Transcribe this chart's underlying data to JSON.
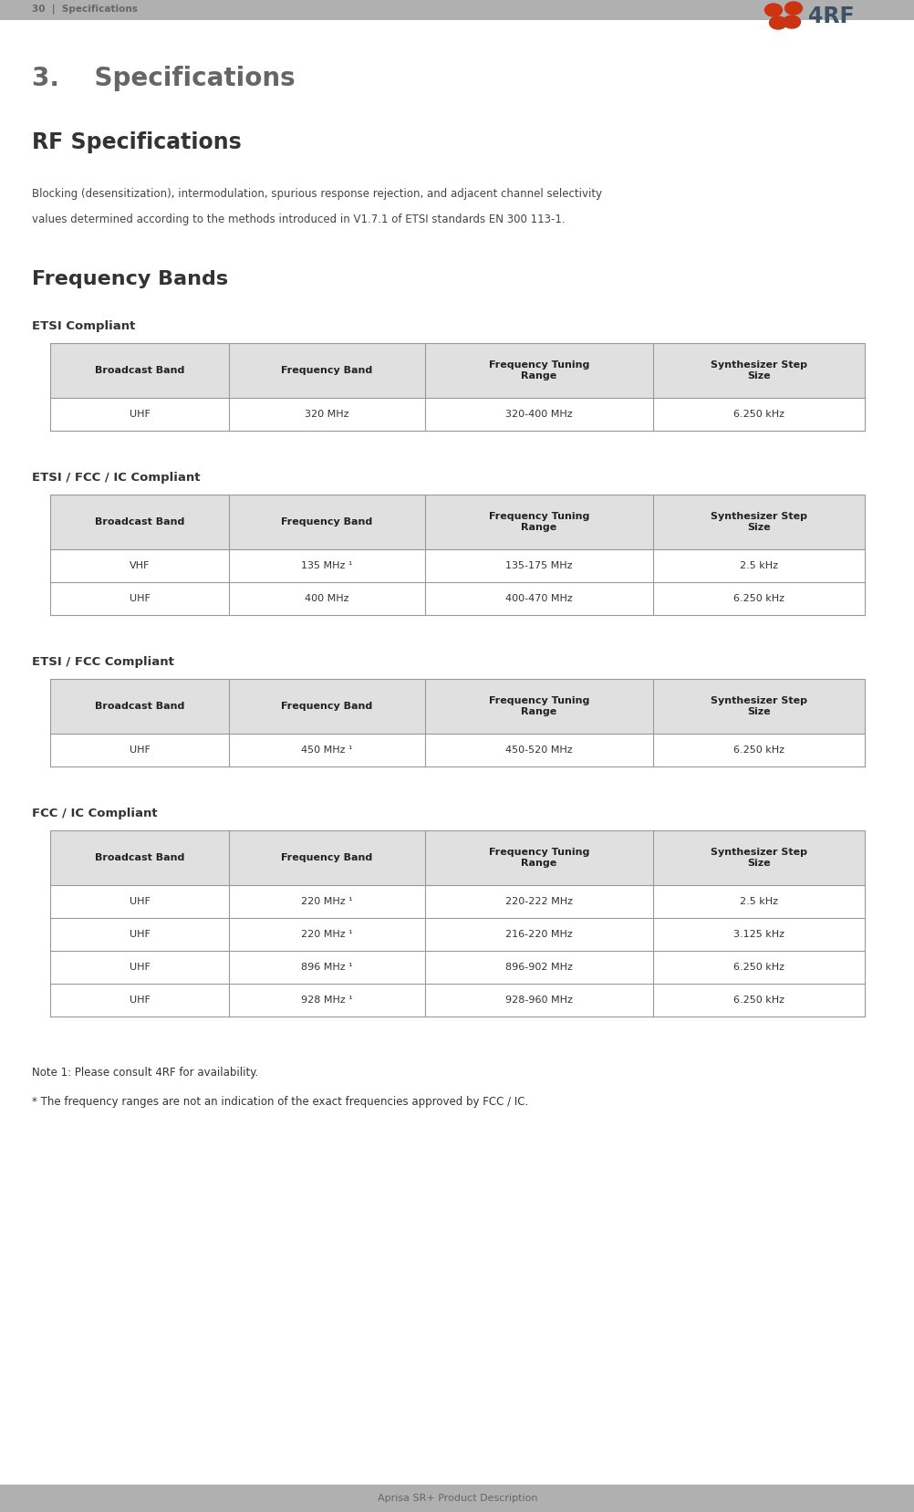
{
  "page_width": 10.03,
  "page_height": 16.57,
  "bg_color": "#ffffff",
  "header_bar_color": "#b0b0b0",
  "header_text_color": "#666666",
  "header_left": "30  |  Specifications",
  "footer_bar_color": "#b0b0b0",
  "footer_text": "Aprisa SR+ Product Description",
  "footer_text_color": "#666666",
  "title_section": "3.    Specifications",
  "title_color": "#666666",
  "subtitle1": "RF Specifications",
  "subtitle1_color": "#333333",
  "body_line1": "Blocking (desensitization), intermodulation, spurious response rejection, and adjacent channel selectivity",
  "body_line2": "values determined according to the methods introduced in V1.7.1 of ETSI standards EN 300 113-1.",
  "section_title": "Frequency Bands",
  "section_title_color": "#333333",
  "table_header_bg": "#e0e0e0",
  "table_border_color": "#999999",
  "table_text_color": "#333333",
  "table_header_text_color": "#222222",
  "etsi_label": "ETSI Compliant",
  "etsi_fcc_ic_label": "ETSI / FCC / IC Compliant",
  "etsi_fcc_label": "ETSI / FCC Compliant",
  "fcc_ic_label": "FCC / IC Compliant",
  "col_headers": [
    "Broadcast Band",
    "Frequency Band",
    "Frequency Tuning\nRange",
    "Synthesizer Step\nSize"
  ],
  "etsi_rows": [
    [
      "UHF",
      "320 MHz",
      "320-400 MHz",
      "6.250 kHz"
    ]
  ],
  "etsi_fcc_ic_rows": [
    [
      "VHF",
      "135 MHz (1)",
      "135-175 MHz",
      "2.5 kHz"
    ],
    [
      "UHF",
      "400 MHz",
      "400-470 MHz",
      "6.250 kHz"
    ]
  ],
  "etsi_fcc_rows": [
    [
      "UHF",
      "450 MHz (1)",
      "450-520 MHz",
      "6.250 kHz"
    ]
  ],
  "fcc_ic_rows": [
    [
      "UHF",
      "220 MHz (1)",
      "220-222 MHz",
      "2.5 kHz"
    ],
    [
      "UHF",
      "220 MHz (1)",
      "216-220 MHz",
      "3.125 kHz"
    ],
    [
      "UHF",
      "896 MHz (1)",
      "896-902 MHz",
      "6.250 kHz"
    ],
    [
      "UHF",
      "928 MHz (1)",
      "928-960 MHz",
      "6.250 kHz"
    ]
  ],
  "note1": "Note 1: Please consult 4RF for availability.",
  "note2": "* The frequency ranges are not an indication of the exact frequencies approved by FCC / IC.",
  "logo_dot_color": "#cc3311",
  "logo_text_color": "#3d5166"
}
